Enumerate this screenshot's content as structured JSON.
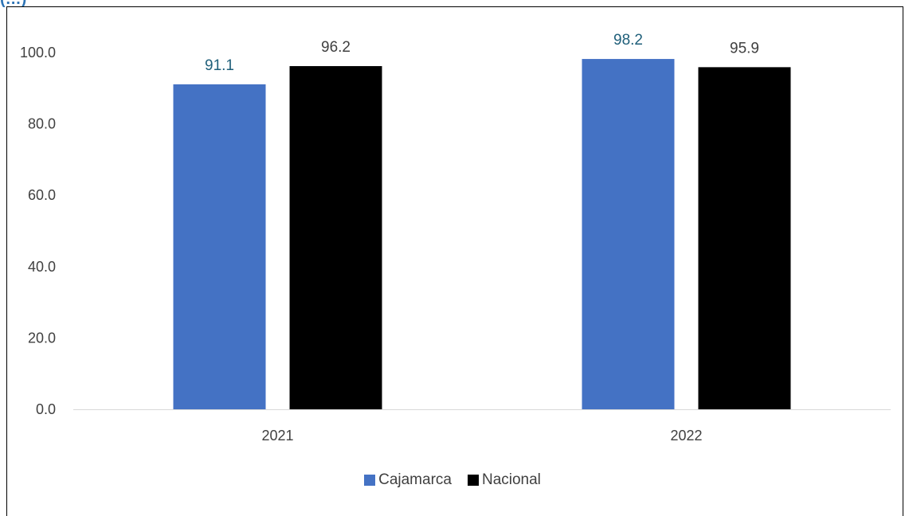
{
  "header": {
    "title_fragment": "(…)"
  },
  "chart_data": {
    "type": "bar",
    "categories": [
      "2021",
      "2022"
    ],
    "series": [
      {
        "name": "Cajamarca",
        "values": [
          91.1,
          98.2
        ],
        "color": "#4472c4",
        "label_color": "#1f5f7a"
      },
      {
        "name": "Nacional",
        "values": [
          96.2,
          95.9
        ],
        "color": "#000000",
        "label_color": "#404040"
      }
    ],
    "title": "",
    "xlabel": "",
    "ylabel": "",
    "ylim": [
      0,
      100
    ],
    "yticks": [
      "0.0",
      "20.0",
      "40.0",
      "60.0",
      "80.0",
      "100.0"
    ],
    "grid": false,
    "legend_position": "bottom"
  }
}
